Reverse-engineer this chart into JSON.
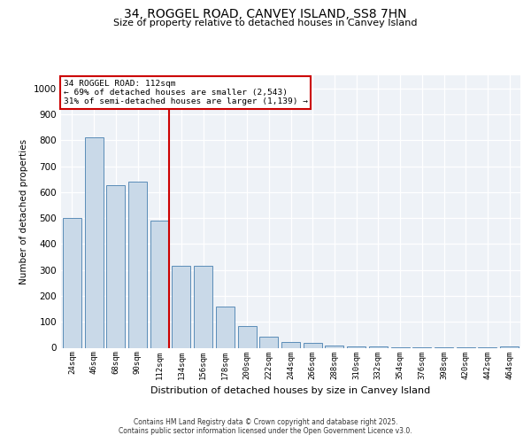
{
  "title": "34, ROGGEL ROAD, CANVEY ISLAND, SS8 7HN",
  "subtitle": "Size of property relative to detached houses in Canvey Island",
  "xlabel": "Distribution of detached houses by size in Canvey Island",
  "ylabel": "Number of detached properties",
  "categories": [
    "24sqm",
    "46sqm",
    "68sqm",
    "90sqm",
    "112sqm",
    "134sqm",
    "156sqm",
    "178sqm",
    "200sqm",
    "222sqm",
    "244sqm",
    "266sqm",
    "288sqm",
    "310sqm",
    "332sqm",
    "354sqm",
    "376sqm",
    "398sqm",
    "420sqm",
    "442sqm",
    "464sqm"
  ],
  "values": [
    500,
    810,
    625,
    640,
    490,
    315,
    315,
    160,
    82,
    42,
    22,
    18,
    10,
    6,
    4,
    3,
    2,
    1,
    1,
    1,
    5
  ],
  "bar_color": "#c9d9e8",
  "bar_edge_color": "#5b8db8",
  "property_index": 4,
  "annotation_line1": "34 ROGGEL ROAD: 112sqm",
  "annotation_line2": "← 69% of detached houses are smaller (2,543)",
  "annotation_line3": "31% of semi-detached houses are larger (1,139) →",
  "vline_color": "#cc0000",
  "annotation_box_edgecolor": "#cc0000",
  "background_color": "#eef2f7",
  "grid_color": "#ffffff",
  "ylim": [
    0,
    1050
  ],
  "yticks": [
    0,
    100,
    200,
    300,
    400,
    500,
    600,
    700,
    800,
    900,
    1000
  ],
  "footer_line1": "Contains HM Land Registry data © Crown copyright and database right 2025.",
  "footer_line2": "Contains public sector information licensed under the Open Government Licence v3.0."
}
